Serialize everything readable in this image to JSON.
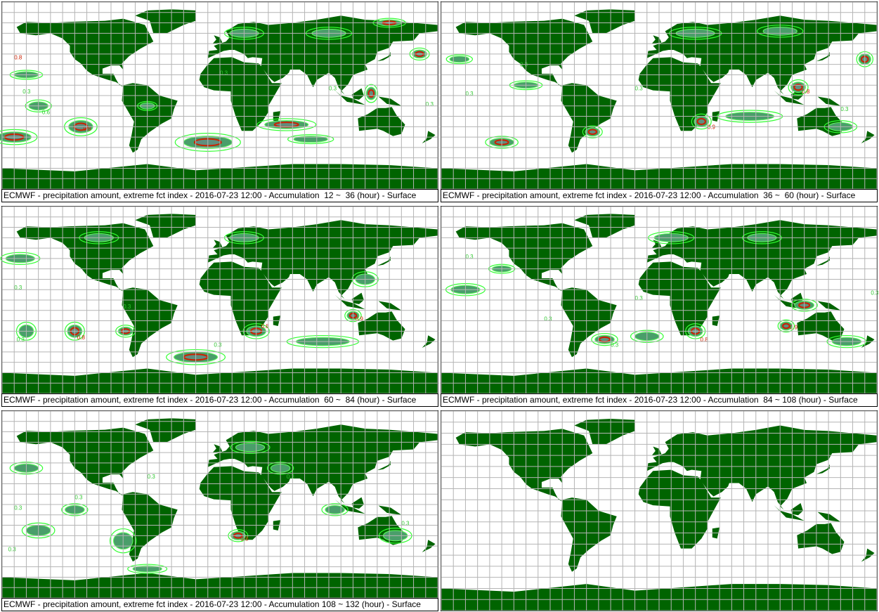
{
  "colors": {
    "land": "#006400",
    "grid": "#b4b4b4",
    "contour_low": "#32ff32",
    "contour_high": "#cc2000",
    "background": "#ffffff"
  },
  "panels": [
    {
      "caption": "ECMWF - precipitation amount, extreme fct index - 2016-07-23 12:00 - Accumulation  12 ~  36 (hour) - Surface",
      "contours": [
        {
          "lon": -170,
          "lat": -40,
          "rx": 14,
          "ry": 5,
          "level": 0.8
        },
        {
          "lon": -115,
          "lat": -30,
          "rx": 10,
          "ry": 6,
          "level": 0.8
        },
        {
          "lon": -10,
          "lat": -45,
          "rx": 20,
          "ry": 6,
          "level": 0.8
        },
        {
          "lon": 55,
          "lat": -28,
          "rx": 18,
          "ry": 4,
          "level": 0.8
        },
        {
          "lon": 75,
          "lat": -42,
          "rx": 14,
          "ry": 3,
          "level": 0.3
        },
        {
          "lon": 125,
          "lat": 2,
          "rx": 4,
          "ry": 6,
          "level": 0.8
        },
        {
          "lon": 165,
          "lat": 40,
          "rx": 6,
          "ry": 4,
          "level": 0.8
        },
        {
          "lon": -160,
          "lat": 20,
          "rx": 10,
          "ry": 3,
          "level": 0.3
        },
        {
          "lon": 20,
          "lat": 60,
          "rx": 12,
          "ry": 4,
          "level": 0.3
        },
        {
          "lon": 90,
          "lat": 60,
          "rx": 14,
          "ry": 4,
          "level": 0.3
        },
        {
          "lon": 140,
          "lat": 70,
          "rx": 10,
          "ry": 3,
          "level": 0.8
        },
        {
          "lon": -60,
          "lat": -10,
          "rx": 6,
          "ry": 3,
          "level": 0.3
        },
        {
          "lon": -150,
          "lat": -10,
          "rx": 8,
          "ry": 4,
          "level": 0.3
        }
      ],
      "labels": [
        {
          "lon": -163,
          "lat": 2,
          "text": "0.3"
        },
        {
          "lon": -147,
          "lat": -18,
          "text": "0.6"
        },
        {
          "lon": -113,
          "lat": -34,
          "text": "0.8"
        },
        {
          "lon": -170,
          "lat": 35,
          "text": "0.8"
        },
        {
          "lon": 90,
          "lat": 5,
          "text": "0.3"
        },
        {
          "lon": 170,
          "lat": -10,
          "text": "0.3"
        },
        {
          "lon": 0,
          "lat": 20,
          "text": "0.3"
        }
      ]
    },
    {
      "caption": "ECMWF - precipitation amount, extreme fct index - 2016-07-23 12:00 - Accumulation  36 ~  60 (hour) - Surface",
      "contours": [
        {
          "lon": -130,
          "lat": -45,
          "rx": 10,
          "ry": 4,
          "level": 0.8
        },
        {
          "lon": -55,
          "lat": -35,
          "rx": 6,
          "ry": 4,
          "level": 0.8
        },
        {
          "lon": 35,
          "lat": -25,
          "rx": 6,
          "ry": 5,
          "level": 0.8
        },
        {
          "lon": 115,
          "lat": 8,
          "rx": 6,
          "ry": 5,
          "level": 0.8
        },
        {
          "lon": 170,
          "lat": 35,
          "rx": 5,
          "ry": 5,
          "level": 0.8
        },
        {
          "lon": -165,
          "lat": 35,
          "rx": 8,
          "ry": 3,
          "level": 0.3
        },
        {
          "lon": 30,
          "lat": 60,
          "rx": 16,
          "ry": 4,
          "level": 0.3
        },
        {
          "lon": 100,
          "lat": 62,
          "rx": 14,
          "ry": 4,
          "level": 0.3
        },
        {
          "lon": 75,
          "lat": -20,
          "rx": 20,
          "ry": 4,
          "level": 0.3
        },
        {
          "lon": -110,
          "lat": 10,
          "rx": 10,
          "ry": 3,
          "level": 0.3
        },
        {
          "lon": 150,
          "lat": -30,
          "rx": 10,
          "ry": 4,
          "level": 0.3
        }
      ],
      "labels": [
        {
          "lon": -115,
          "lat": 28,
          "text": "0.3"
        },
        {
          "lon": 40,
          "lat": -32,
          "text": "0.9"
        },
        {
          "lon": 118,
          "lat": 2,
          "text": "0.8"
        },
        {
          "lon": -160,
          "lat": 0,
          "text": "0.3"
        },
        {
          "lon": -20,
          "lat": 5,
          "text": "0.3"
        },
        {
          "lon": 150,
          "lat": -15,
          "text": "0.3"
        }
      ]
    },
    {
      "caption": "ECMWF - precipitation amount, extreme fct index - 2016-07-23 12:00 - Accumulation  60 ~  84 (hour) - Surface",
      "contours": [
        {
          "lon": -120,
          "lat": -30,
          "rx": 6,
          "ry": 6,
          "level": 0.8
        },
        {
          "lon": -78,
          "lat": -30,
          "rx": 6,
          "ry": 4,
          "level": 0.8
        },
        {
          "lon": 30,
          "lat": -30,
          "rx": 8,
          "ry": 5,
          "level": 0.8
        },
        {
          "lon": 110,
          "lat": -15,
          "rx": 5,
          "ry": 4,
          "level": 0.8
        },
        {
          "lon": -20,
          "lat": -55,
          "rx": 18,
          "ry": 5,
          "level": 0.8
        },
        {
          "lon": 85,
          "lat": -40,
          "rx": 22,
          "ry": 4,
          "level": 0.3
        },
        {
          "lon": -160,
          "lat": -30,
          "rx": 6,
          "ry": 6,
          "level": 0.3
        },
        {
          "lon": -165,
          "lat": 40,
          "rx": 12,
          "ry": 4,
          "level": 0.3
        },
        {
          "lon": -100,
          "lat": 60,
          "rx": 12,
          "ry": 4,
          "level": 0.3
        },
        {
          "lon": 20,
          "lat": 60,
          "rx": 12,
          "ry": 4,
          "level": 0.3
        },
        {
          "lon": 120,
          "lat": 20,
          "rx": 8,
          "ry": 5,
          "level": 0.3
        }
      ],
      "labels": [
        {
          "lon": -168,
          "lat": -40,
          "text": "0.3"
        },
        {
          "lon": -118,
          "lat": -38,
          "text": "0.8"
        },
        {
          "lon": -80,
          "lat": -8,
          "text": "0.3"
        },
        {
          "lon": 34,
          "lat": -27,
          "text": "0.8"
        },
        {
          "lon": 112,
          "lat": -20,
          "text": "0.9"
        },
        {
          "lon": -170,
          "lat": 10,
          "text": "0.3"
        },
        {
          "lon": -5,
          "lat": -45,
          "text": "0.3"
        }
      ]
    },
    {
      "caption": "ECMWF - precipitation amount, extreme fct index - 2016-07-23 12:00 - Accumulation  84 ~ 108 (hour) - Surface",
      "contours": [
        {
          "lon": -45,
          "lat": -38,
          "rx": 8,
          "ry": 4,
          "level": 0.8
        },
        {
          "lon": 30,
          "lat": -30,
          "rx": 6,
          "ry": 5,
          "level": 0.8
        },
        {
          "lon": 105,
          "lat": -25,
          "rx": 5,
          "ry": 4,
          "level": 0.8
        },
        {
          "lon": 120,
          "lat": -5,
          "rx": 8,
          "ry": 4,
          "level": 0.8
        },
        {
          "lon": 155,
          "lat": -40,
          "rx": 12,
          "ry": 4,
          "level": 0.3
        },
        {
          "lon": -160,
          "lat": 10,
          "rx": 12,
          "ry": 4,
          "level": 0.3
        },
        {
          "lon": -130,
          "lat": 30,
          "rx": 8,
          "ry": 3,
          "level": 0.3
        },
        {
          "lon": 10,
          "lat": 60,
          "rx": 14,
          "ry": 4,
          "level": 0.3
        },
        {
          "lon": 85,
          "lat": 60,
          "rx": 12,
          "ry": 4,
          "level": 0.3
        },
        {
          "lon": -10,
          "lat": -35,
          "rx": 10,
          "ry": 4,
          "level": 0.3
        }
      ],
      "labels": [
        {
          "lon": -160,
          "lat": 40,
          "text": "0.3"
        },
        {
          "lon": -95,
          "lat": -20,
          "text": "0.3"
        },
        {
          "lon": -40,
          "lat": -45,
          "text": "0.3"
        },
        {
          "lon": 34,
          "lat": -40,
          "text": "0.8"
        },
        {
          "lon": 108,
          "lat": -28,
          "text": "0.9"
        },
        {
          "lon": -20,
          "lat": 0,
          "text": "0.3"
        },
        {
          "lon": 175,
          "lat": 5,
          "text": "0.3"
        }
      ]
    },
    {
      "caption": "ECMWF - precipitation amount, extreme fct index - 2016-07-23 12:00 - Accumulation 108 ~ 132 (hour) - Surface",
      "contours": [
        {
          "lon": -80,
          "lat": -35,
          "rx": 8,
          "ry": 8,
          "level": 0.3
        },
        {
          "lon": 15,
          "lat": -30,
          "rx": 6,
          "ry": 4,
          "level": 0.8
        },
        {
          "lon": 95,
          "lat": -5,
          "rx": 8,
          "ry": 4,
          "level": 0.3
        },
        {
          "lon": -150,
          "lat": -25,
          "rx": 10,
          "ry": 5,
          "level": 0.3
        },
        {
          "lon": -120,
          "lat": -5,
          "rx": 8,
          "ry": 4,
          "level": 0.3
        },
        {
          "lon": 145,
          "lat": -30,
          "rx": 10,
          "ry": 5,
          "level": 0.3
        },
        {
          "lon": -160,
          "lat": 35,
          "rx": 10,
          "ry": 4,
          "level": 0.3
        },
        {
          "lon": 25,
          "lat": 55,
          "rx": 12,
          "ry": 4,
          "level": 0.3
        },
        {
          "lon": 50,
          "lat": 35,
          "rx": 8,
          "ry": 4,
          "level": 0.3
        },
        {
          "lon": -60,
          "lat": -62,
          "rx": 12,
          "ry": 3,
          "level": 0.3
        }
      ],
      "labels": [
        {
          "lon": -170,
          "lat": -5,
          "text": "0.3"
        },
        {
          "lon": -120,
          "lat": 5,
          "text": "0.3"
        },
        {
          "lon": -60,
          "lat": 25,
          "text": "0.3"
        },
        {
          "lon": 17,
          "lat": -35,
          "text": "0.8"
        },
        {
          "lon": 55,
          "lat": 25,
          "text": "0.3"
        },
        {
          "lon": 150,
          "lat": -20,
          "text": "0.3"
        },
        {
          "lon": -175,
          "lat": -45,
          "text": "0.3"
        }
      ]
    },
    {
      "caption": "",
      "contours": [],
      "labels": []
    }
  ]
}
